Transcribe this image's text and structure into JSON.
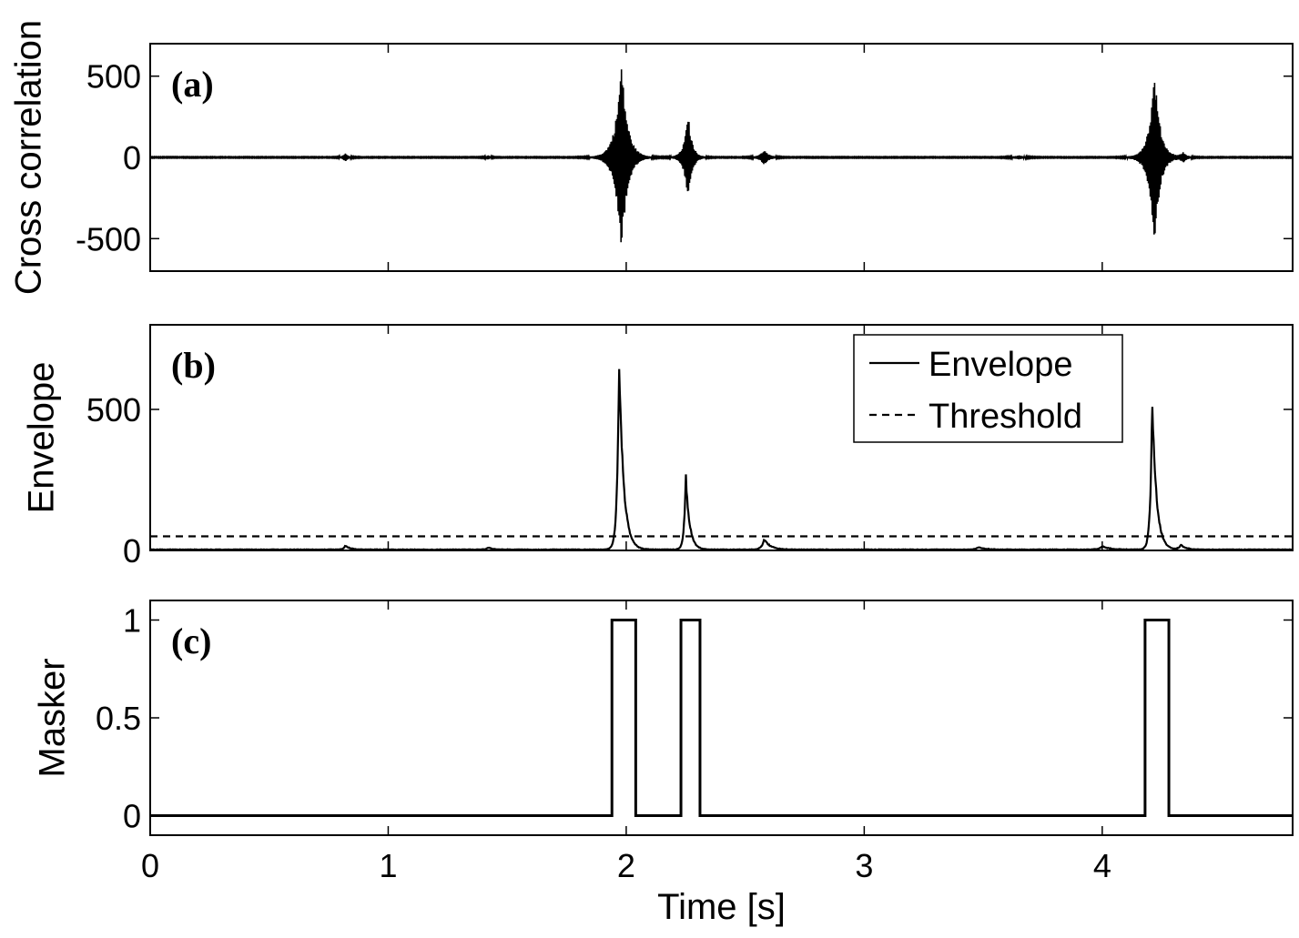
{
  "chart_data": [
    {
      "panel": "a",
      "type": "line",
      "panel_label": "(a)",
      "ylabel": "Cross correlation",
      "xlim": [
        0,
        4.8
      ],
      "ylim": [
        -700,
        700
      ],
      "yticks": [
        {
          "value": 500,
          "label": "500"
        },
        {
          "value": 0,
          "label": "0"
        },
        {
          "value": -500,
          "label": "-500"
        }
      ],
      "xticks": [
        0,
        1,
        2,
        3,
        4
      ],
      "bursts": [
        {
          "t": 0.82,
          "amp": 25,
          "width": 0.025
        },
        {
          "t": 1.42,
          "amp": 12,
          "width": 0.02
        },
        {
          "t": 1.98,
          "amp": 600,
          "width": 0.055
        },
        {
          "t": 2.26,
          "amp": 280,
          "width": 0.035
        },
        {
          "t": 2.58,
          "amp": 45,
          "width": 0.04
        },
        {
          "t": 3.65,
          "amp": 10,
          "width": 0.05
        },
        {
          "t": 4.22,
          "amp": 550,
          "width": 0.05
        },
        {
          "t": 4.34,
          "amp": 30,
          "width": 0.03
        }
      ],
      "color": "#000000"
    },
    {
      "panel": "b",
      "type": "line",
      "panel_label": "(b)",
      "ylabel": "Envelope",
      "xlim": [
        0,
        4.8
      ],
      "ylim": [
        0,
        800
      ],
      "yticks": [
        {
          "value": 500,
          "label": "500"
        },
        {
          "value": 0,
          "label": "0"
        }
      ],
      "xticks": [
        0,
        1,
        2,
        3,
        4
      ],
      "threshold": 50,
      "peaks": [
        {
          "t": 0.82,
          "amp": 15,
          "width": 0.03
        },
        {
          "t": 1.42,
          "amp": 8,
          "width": 0.03
        },
        {
          "t": 1.97,
          "amp": 700,
          "width": 0.03
        },
        {
          "t": 2.25,
          "amp": 280,
          "width": 0.025
        },
        {
          "t": 2.58,
          "amp": 38,
          "width": 0.04
        },
        {
          "t": 3.48,
          "amp": 8,
          "width": 0.05
        },
        {
          "t": 4.0,
          "amp": 12,
          "width": 0.05
        },
        {
          "t": 4.21,
          "amp": 560,
          "width": 0.028
        },
        {
          "t": 4.33,
          "amp": 18,
          "width": 0.03
        }
      ],
      "legend": {
        "placement": "top-right",
        "entries": [
          {
            "name": "Envelope",
            "style": "solid"
          },
          {
            "name": "Threshold",
            "style": "dashed"
          }
        ]
      },
      "color": "#000000"
    },
    {
      "panel": "c",
      "type": "line",
      "panel_label": "(c)",
      "ylabel": "Masker",
      "xlabel": "Time [s]",
      "xlim": [
        0,
        4.8
      ],
      "ylim": [
        -0.1,
        1.1
      ],
      "yticks": [
        {
          "value": 1,
          "label": "1"
        },
        {
          "value": 0.5,
          "label": "0.5"
        },
        {
          "value": 0,
          "label": "0"
        }
      ],
      "xticks": [
        {
          "value": 0,
          "label": "0"
        },
        {
          "value": 1,
          "label": "1"
        },
        {
          "value": 2,
          "label": "2"
        },
        {
          "value": 3,
          "label": "3"
        },
        {
          "value": 4,
          "label": "4"
        }
      ],
      "pulses": [
        {
          "start": 1.94,
          "end": 2.04
        },
        {
          "start": 2.23,
          "end": 2.31
        },
        {
          "start": 4.18,
          "end": 4.28
        }
      ],
      "color": "#000000"
    }
  ]
}
